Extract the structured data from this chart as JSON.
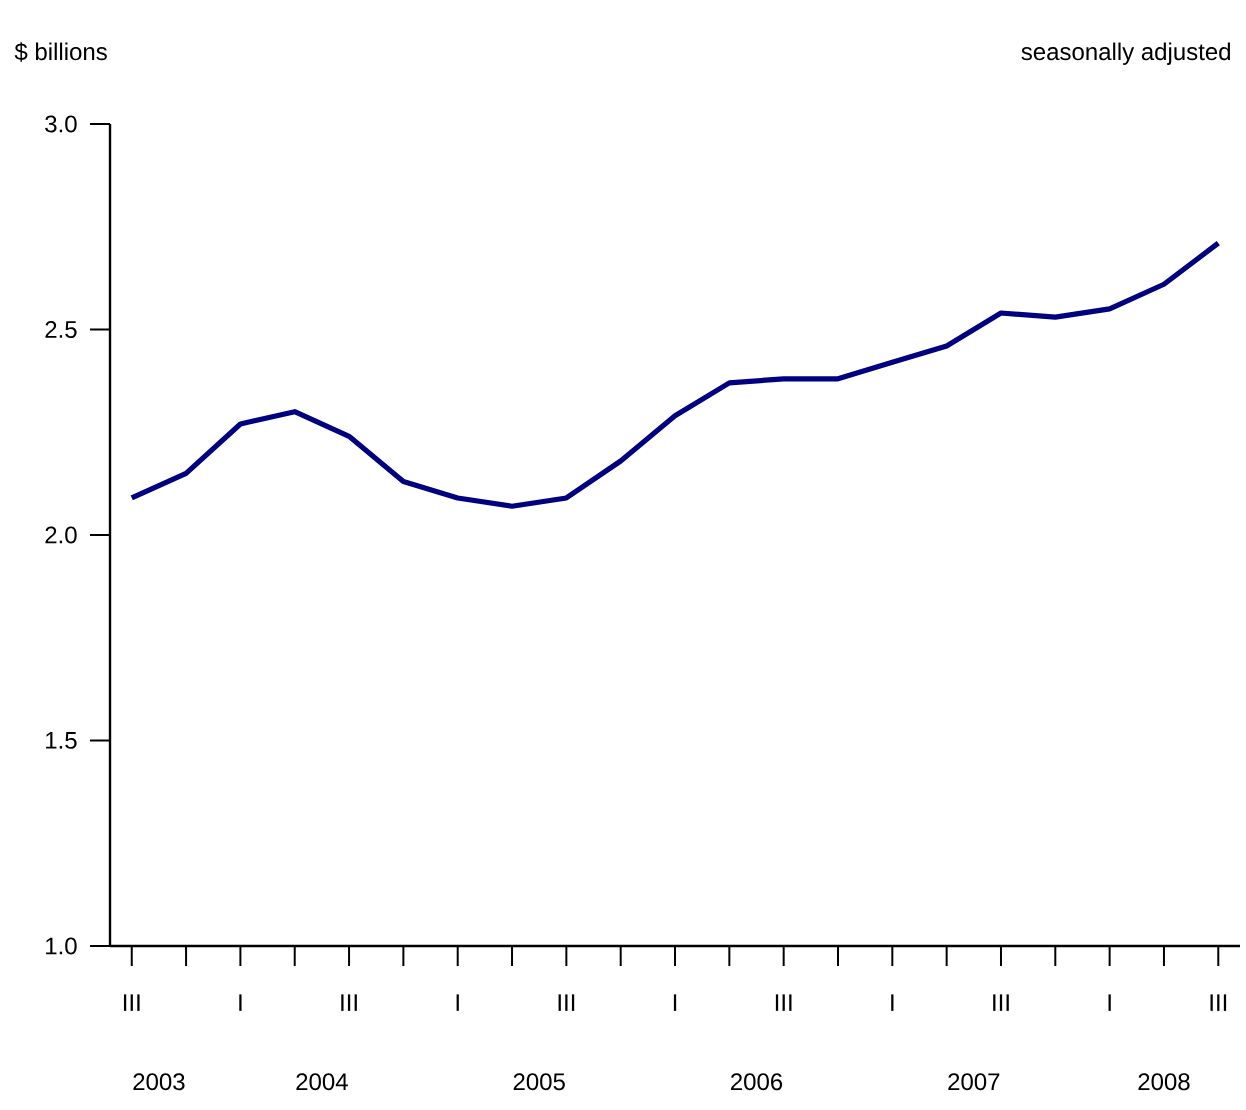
{
  "chart_data": {
    "type": "line",
    "ylabel": "$ billions",
    "subtitle": "seasonally adjusted",
    "categories": [
      "III",
      null,
      "I",
      null,
      "III",
      null,
      "I",
      null,
      "III",
      null,
      "I",
      null,
      "III",
      null,
      "I",
      null,
      "III",
      null,
      "I",
      null,
      "III"
    ],
    "values": [
      2.09,
      2.15,
      2.27,
      2.3,
      2.24,
      2.13,
      2.09,
      2.07,
      2.09,
      2.18,
      2.29,
      2.37,
      2.38,
      2.38,
      2.42,
      2.46,
      2.54,
      2.53,
      2.55,
      2.61,
      2.71
    ],
    "color": "#000080",
    "ylim": [
      1.0,
      3.0
    ],
    "yticks": [
      {
        "value": 1.0,
        "label": "1.0"
      },
      {
        "value": 1.5,
        "label": "1.5"
      },
      {
        "value": 2.0,
        "label": "2.0"
      },
      {
        "value": 2.5,
        "label": "2.5"
      },
      {
        "value": 3.0,
        "label": "3.0"
      }
    ],
    "annotations": [
      "2003",
      "2004",
      "2005",
      "2006",
      "2007",
      "2008"
    ]
  }
}
